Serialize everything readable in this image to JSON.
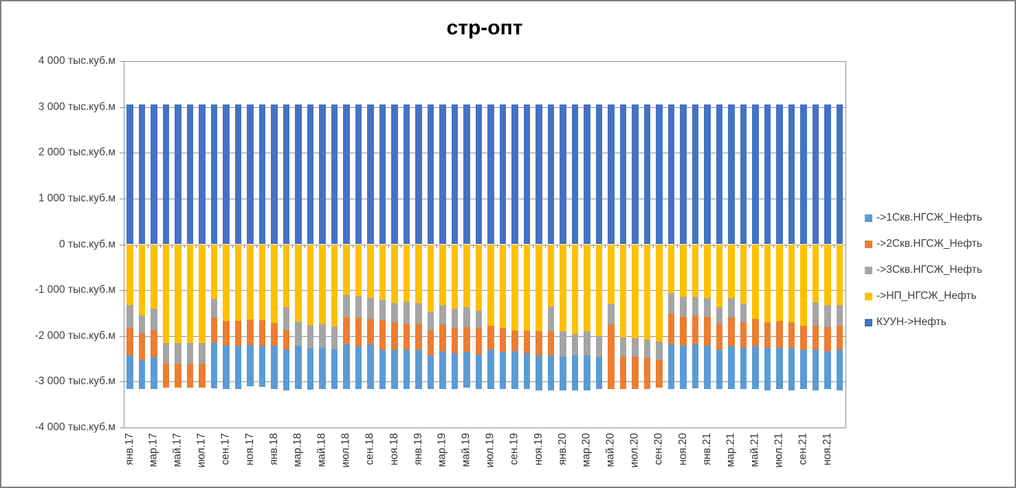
{
  "title": "стр-опт",
  "colors": {
    "series_1skv": "#5B9BD5",
    "series_2skv": "#ED7D31",
    "series_3skv": "#A5A5A5",
    "series_np": "#FFC000",
    "series_kuun": "#4472C4",
    "gridline": "#8f8f8f",
    "axis_text": "#404040",
    "title_text": "#000000",
    "background": "#FFFFFF"
  },
  "y_axis": {
    "unit": "тыс.куб.м",
    "max": 4000,
    "min": -4000,
    "step": 1000,
    "labels": [
      "4 000 тыс.куб.м",
      "3 000 тыс.куб.м",
      "2 000 тыс.куб.м",
      "1 000 тыс.куб.м",
      "0 тыс.куб.м",
      "-1 000 тыс.куб.м",
      "-2 000 тыс.куб.м",
      "-3 000 тыс.куб.м",
      "-4 000 тыс.куб.м"
    ]
  },
  "x_axis": {
    "tick_labels": [
      "янв.17",
      "мар.17",
      "май.17",
      "июл.17",
      "сен.17",
      "ноя.17",
      "янв.18",
      "мар.18",
      "май.18",
      "июл.18",
      "сен.18",
      "ноя.18",
      "янв.19",
      "мар.19",
      "май.19",
      "июл.19",
      "сен.19",
      "ноя.19",
      "янв.20",
      "мар.20",
      "май.20",
      "июл.20",
      "сен.20",
      "ноя.20",
      "янв.21",
      "мар.21",
      "май.21",
      "июл.21",
      "сен.21",
      "ноя.21"
    ]
  },
  "legend": [
    {
      "label": "->1Скв.НГСЖ_Нефть",
      "color": "#5B9BD5"
    },
    {
      "label": "->2Скв.НГСЖ_Нефть",
      "color": "#ED7D31"
    },
    {
      "label": "->3Скв.НГСЖ_Нефть",
      "color": "#A5A5A5"
    },
    {
      "label": "->НП_НГСЖ_Нефть",
      "color": "#FFC000"
    },
    {
      "label": "КУУН->Нефть",
      "color": "#4472C4"
    }
  ],
  "chart_data": {
    "type": "bar",
    "stacked": true,
    "title": "стр-опт",
    "ylabel": "тыс.куб.м",
    "ylim": [
      -4000,
      4000
    ],
    "grid": true,
    "legend_position": "right",
    "x_label_rotation": 90,
    "categories": [
      "янв.17",
      "фев.17",
      "мар.17",
      "апр.17",
      "май.17",
      "июн.17",
      "июл.17",
      "авг.17",
      "сен.17",
      "окт.17",
      "ноя.17",
      "дек.17",
      "янв.18",
      "фев.18",
      "мар.18",
      "апр.18",
      "май.18",
      "июн.18",
      "июл.18",
      "авг.18",
      "сен.18",
      "окт.18",
      "ноя.18",
      "дек.18",
      "янв.19",
      "фев.19",
      "мар.19",
      "апр.19",
      "май.19",
      "июн.19",
      "июл.19",
      "авг.19",
      "сен.19",
      "окт.19",
      "ноя.19",
      "дек.19",
      "янв.20",
      "фев.20",
      "мар.20",
      "апр.20",
      "май.20",
      "июн.20",
      "июл.20",
      "авг.20",
      "сен.20",
      "окт.20",
      "ноя.20",
      "дек.20",
      "янв.21",
      "фев.21",
      "мар.21",
      "апр.21",
      "май.21",
      "июн.21",
      "июл.21",
      "авг.21",
      "сен.21",
      "окт.21",
      "ноя.21",
      "дек.21"
    ],
    "series": [
      {
        "name": "->1Скв.НГСЖ_Нефть",
        "color": "#5B9BD5",
        "values": [
          -730,
          -630,
          -705,
          0,
          0,
          0,
          0,
          -1000,
          -950,
          -950,
          -900,
          -900,
          -950,
          -880,
          -940,
          -890,
          -900,
          -865,
          -980,
          -930,
          -980,
          -855,
          -855,
          -855,
          -855,
          -730,
          -830,
          -780,
          -780,
          -755,
          -855,
          -805,
          -830,
          -780,
          -755,
          -755,
          -730,
          -755,
          -755,
          -705,
          0,
          0,
          0,
          0,
          0,
          -980,
          -955,
          -955,
          -955,
          -855,
          -930,
          -905,
          -930,
          -930,
          -905,
          -930,
          -855,
          -880,
          -830,
          -880
        ]
      },
      {
        "name": "->2Скв.НГСЖ_Нефть",
        "color": "#ED7D31",
        "values": [
          -600,
          -580,
          -575,
          -530,
          -530,
          -530,
          -530,
          -550,
          -530,
          -530,
          -550,
          -550,
          -490,
          -440,
          0,
          0,
          0,
          0,
          -580,
          -625,
          -550,
          -650,
          -600,
          -575,
          -575,
          -550,
          -575,
          -550,
          -550,
          -575,
          -525,
          -525,
          -450,
          -500,
          -525,
          -525,
          0,
          0,
          0,
          0,
          -1405,
          -705,
          -705,
          -680,
          -600,
          -680,
          -630,
          -630,
          -630,
          -575,
          -630,
          -550,
          -600,
          -550,
          -580,
          -550,
          -525,
          -535,
          -525,
          -525
        ]
      },
      {
        "name": "->3Скв.НГСЖ_Нефть",
        "color": "#A5A5A5",
        "values": [
          -500,
          -400,
          -480,
          -450,
          -450,
          -450,
          -450,
          -400,
          0,
          0,
          0,
          0,
          0,
          -490,
          -530,
          -520,
          -520,
          -505,
          -500,
          -475,
          -450,
          -450,
          -425,
          -475,
          -450,
          -400,
          -425,
          -425,
          -425,
          -375,
          0,
          0,
          0,
          0,
          0,
          -550,
          -550,
          -475,
          -525,
          -450,
          -450,
          -425,
          -400,
          -400,
          -400,
          -425,
          -425,
          -400,
          -400,
          -350,
          -425,
          -400,
          0,
          0,
          0,
          0,
          0,
          -500,
          -475,
          -460
        ]
      },
      {
        "name": "->НП_НГСЖ_Нефть",
        "color": "#FFC000",
        "values": [
          -1330,
          -1550,
          -1400,
          -2150,
          -2150,
          -2150,
          -2150,
          -1200,
          -1680,
          -1680,
          -1650,
          -1660,
          -1720,
          -1380,
          -1690,
          -1760,
          -1740,
          -1790,
          -1100,
          -1130,
          -1180,
          -1205,
          -1280,
          -1255,
          -1280,
          -1480,
          -1330,
          -1405,
          -1380,
          -1455,
          -1780,
          -1830,
          -1880,
          -1880,
          -1905,
          -1355,
          -1905,
          -1955,
          -1905,
          -2005,
          -1305,
          -2030,
          -2055,
          -2080,
          -2130,
          -1080,
          -1155,
          -1155,
          -1180,
          -1380,
          -1180,
          -1305,
          -1630,
          -1705,
          -1680,
          -1705,
          -1780,
          -1270,
          -1330,
          -1325
        ]
      },
      {
        "name": "КУУН->Нефть",
        "color": "#4472C4",
        "values": [
          3050,
          3050,
          3050,
          3050,
          3050,
          3050,
          3050,
          3050,
          3050,
          3050,
          3050,
          3050,
          3050,
          3050,
          3050,
          3050,
          3050,
          3050,
          3050,
          3050,
          3050,
          3050,
          3050,
          3050,
          3050,
          3050,
          3050,
          3050,
          3050,
          3050,
          3050,
          3050,
          3050,
          3050,
          3050,
          3050,
          3050,
          3050,
          3050,
          3050,
          3050,
          3050,
          3050,
          3050,
          3050,
          3050,
          3050,
          3050,
          3050,
          3050,
          3050,
          3050,
          3050,
          3050,
          3050,
          3050,
          3050,
          3050,
          3050,
          3050
        ]
      }
    ],
    "negative_stack_order_from_zero": [
      "->НП_НГСЖ_Нефть",
      "->3Скв.НГСЖ_Нефть",
      "->2Скв.НГСЖ_Нефть",
      "->1Скв.НГСЖ_Нефть"
    ]
  }
}
